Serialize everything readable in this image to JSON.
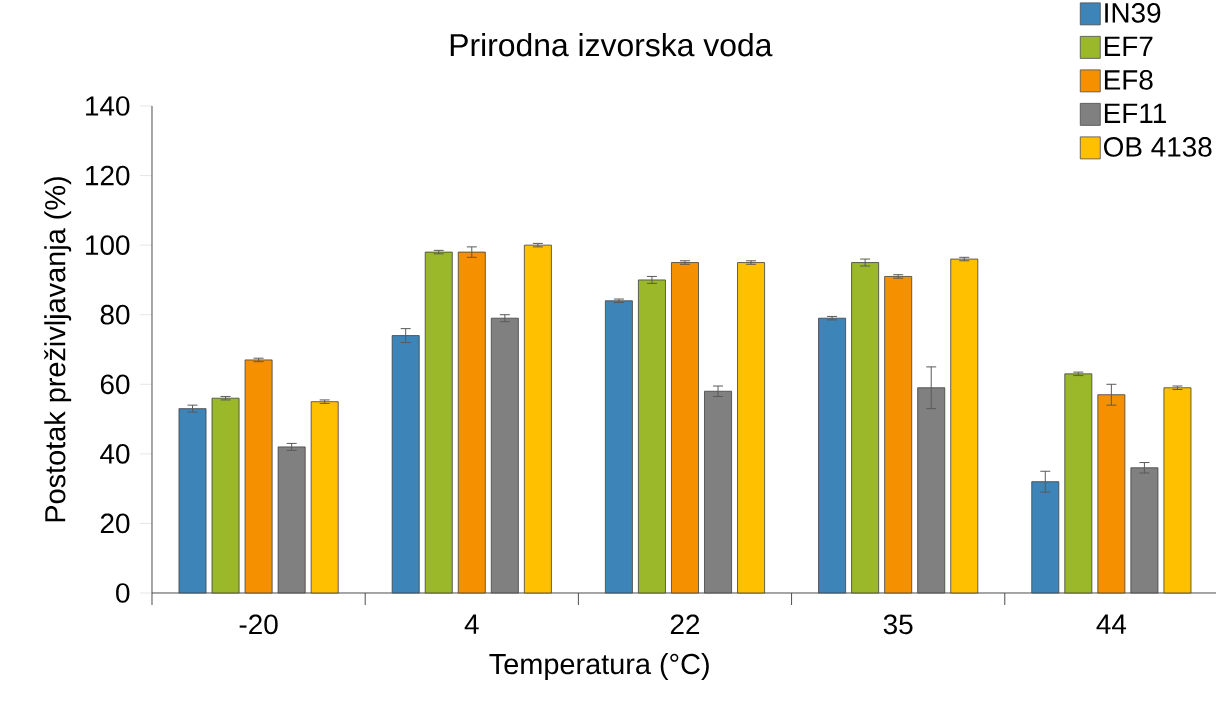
{
  "chart_data": {
    "type": "bar",
    "title": "Prirodna izvorska voda",
    "xlabel": "Temperatura (°C)",
    "ylabel": "Postotak preživljavanja (%)",
    "categories": [
      "-20",
      "4",
      "22",
      "35",
      "44"
    ],
    "series": [
      {
        "name": "IN39",
        "color": "#3d85b8",
        "values": [
          53,
          74,
          84,
          79,
          32
        ],
        "errors": [
          1,
          2,
          0.5,
          0.5,
          3
        ]
      },
      {
        "name": "EF7",
        "color": "#9ab82a",
        "values": [
          56,
          98,
          90,
          95,
          63
        ],
        "errors": [
          0.5,
          0.5,
          1,
          1,
          0.5
        ]
      },
      {
        "name": "EF8",
        "color": "#f59100",
        "values": [
          67,
          98,
          95,
          91,
          57
        ],
        "errors": [
          0.5,
          1.5,
          0.5,
          0.5,
          3
        ]
      },
      {
        "name": "EF11",
        "color": "#808080",
        "values": [
          42,
          79,
          58,
          59,
          36
        ],
        "errors": [
          1,
          1,
          1.5,
          6,
          1.5
        ]
      },
      {
        "name": "OB 4138",
        "color": "#ffc000",
        "values": [
          55,
          100,
          95,
          96,
          59
        ],
        "errors": [
          0.5,
          0.5,
          0.5,
          0.5,
          0.5
        ]
      }
    ],
    "ylim": [
      0,
      140
    ],
    "yticks": [
      0,
      20,
      40,
      60,
      80,
      100,
      120,
      140
    ],
    "legend": "top right"
  }
}
